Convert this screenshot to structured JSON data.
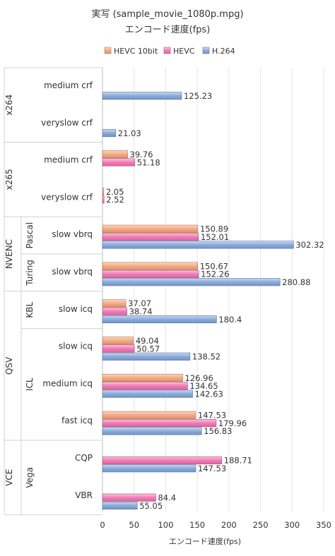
{
  "chart_data": {
    "type": "bar",
    "orientation": "horizontal",
    "title": "実写 (sample_movie_1080p.mpg)",
    "subtitle": "エンコード速度(fps)",
    "xlabel": "エンコード速度(fps)",
    "xlim": [
      0,
      350
    ],
    "xticks": [
      "0",
      "50",
      "100",
      "150",
      "200",
      "250",
      "300",
      "350"
    ],
    "grid": true,
    "legend_position": "top",
    "series": [
      {
        "name": "HEVC 10bit",
        "color": "#f5a77c"
      },
      {
        "name": "HEVC",
        "color": "#f277b3"
      },
      {
        "name": "H.264",
        "color": "#86a8dc"
      }
    ],
    "group_levels": [
      [
        {
          "label": "x264",
          "span": [
            0,
            1
          ]
        },
        {
          "label": "x265",
          "span": [
            2,
            3
          ]
        },
        {
          "label": "NVENC",
          "span": [
            4,
            5
          ]
        },
        {
          "label": "QSV",
          "span": [
            6,
            9
          ]
        },
        {
          "label": "VCE",
          "span": [
            10,
            11
          ]
        }
      ],
      [
        {
          "label": "Pascal",
          "span": [
            4,
            4
          ]
        },
        {
          "label": "Turing",
          "span": [
            5,
            5
          ]
        },
        {
          "label": "KBL",
          "span": [
            6,
            6
          ]
        },
        {
          "label": "ICL",
          "span": [
            7,
            9
          ]
        },
        {
          "label": "Vega",
          "span": [
            10,
            11
          ]
        }
      ]
    ],
    "categories": [
      {
        "label": "medium crf",
        "values": [
          null,
          null,
          125.23
        ],
        "labels": [
          "",
          "",
          "125.23"
        ]
      },
      {
        "label": "veryslow crf",
        "values": [
          null,
          null,
          21.03
        ],
        "labels": [
          "",
          "",
          "21.03"
        ]
      },
      {
        "label": "medium crf",
        "values": [
          39.76,
          51.18,
          null
        ],
        "labels": [
          "39.76",
          "51.18",
          ""
        ]
      },
      {
        "label": "veryslow crf",
        "values": [
          2.05,
          2.52,
          null
        ],
        "labels": [
          "2.05",
          "2.52",
          ""
        ]
      },
      {
        "label": "slow vbrq",
        "values": [
          150.89,
          152.01,
          302.32
        ],
        "labels": [
          "150.89",
          "152.01",
          "302.32"
        ]
      },
      {
        "label": "slow vbrq",
        "values": [
          150.67,
          152.26,
          280.88
        ],
        "labels": [
          "150.67",
          "152.26",
          "280.88"
        ]
      },
      {
        "label": "slow icq",
        "values": [
          37.07,
          38.74,
          180.4
        ],
        "labels": [
          "37.07",
          "38.74",
          "180.4"
        ]
      },
      {
        "label": "slow icq",
        "values": [
          49.04,
          50.57,
          138.52
        ],
        "labels": [
          "49.04",
          "50.57",
          "138.52"
        ]
      },
      {
        "label": "medium icq",
        "values": [
          126.96,
          134.65,
          142.63
        ],
        "labels": [
          "126.96",
          "134.65",
          "142.63"
        ]
      },
      {
        "label": "fast icq",
        "values": [
          147.53,
          179.96,
          156.83
        ],
        "labels": [
          "147.53",
          "179.96",
          "156.83"
        ]
      },
      {
        "label": "CQP",
        "values": [
          null,
          188.71,
          147.53
        ],
        "labels": [
          "",
          "188.71",
          "147.53"
        ]
      },
      {
        "label": "VBR",
        "values": [
          null,
          84.4,
          55.05
        ],
        "labels": [
          "",
          "84.4",
          "55.05"
        ]
      }
    ]
  }
}
